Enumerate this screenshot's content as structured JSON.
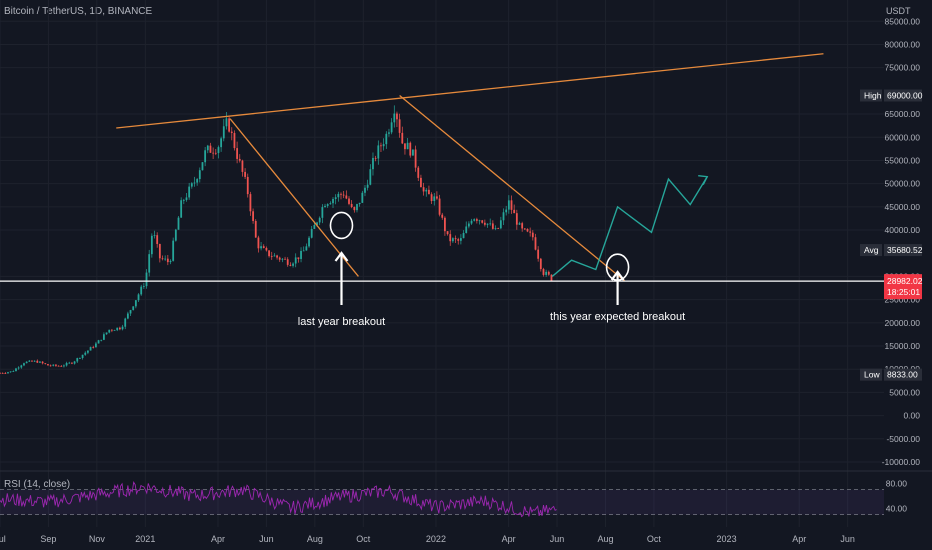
{
  "header": {
    "symbol_title": "Bitcoin / TetherUS, 1D, BINANCE",
    "unit": "USDT",
    "rsi_title": "RSI (14, close)"
  },
  "colors": {
    "background": "#131722",
    "trendline": "#e68a3c",
    "projection": "#26a69a",
    "rsi": "#9c27b0",
    "up_candle": "#26a69a",
    "down_candle": "#ef5350",
    "price_line": "#ffffff"
  },
  "price_axis": {
    "ticks": [
      {
        "value": 85000,
        "label": "85000.00"
      },
      {
        "value": 80000,
        "label": "80000.00"
      },
      {
        "value": 75000,
        "label": "75000.00"
      },
      {
        "value": 65000,
        "label": "65000.00"
      },
      {
        "value": 60000,
        "label": "60000.00"
      },
      {
        "value": 55000,
        "label": "55000.00"
      },
      {
        "value": 50000,
        "label": "50000.00"
      },
      {
        "value": 45000,
        "label": "45000.00"
      },
      {
        "value": 40000,
        "label": "40000.00"
      },
      {
        "value": 30000,
        "label": "30000.00"
      },
      {
        "value": 25000,
        "label": "25000.00"
      },
      {
        "value": 20000,
        "label": "20000.00"
      },
      {
        "value": 15000,
        "label": "15000.00"
      },
      {
        "value": 10000,
        "label": "10000.00"
      },
      {
        "value": 5000,
        "label": "5000.00"
      },
      {
        "value": 0,
        "label": "0.00"
      },
      {
        "value": -5000,
        "label": "-5000.00"
      },
      {
        "value": -10000,
        "label": "-10000.00"
      }
    ],
    "badges": {
      "high": {
        "label": "High",
        "value": 69000,
        "text": "69000.00"
      },
      "avg": {
        "label": "Avg",
        "value": 35680.52,
        "text": "35680.52"
      },
      "current": {
        "value": 28982.02,
        "text": "28982.02",
        "countdown": "18:25:01"
      },
      "low": {
        "label": "Low",
        "value": 8833,
        "text": "8833.00"
      }
    }
  },
  "rsi_axis": {
    "ticks": [
      {
        "value": 80,
        "label": "80.00"
      },
      {
        "value": 40,
        "label": "40.00"
      }
    ],
    "band": [
      30,
      70
    ]
  },
  "time_axis": [
    {
      "label": "Jul",
      "t": 0
    },
    {
      "label": "Sep",
      "t": 2
    },
    {
      "label": "Nov",
      "t": 4
    },
    {
      "label": "2021",
      "t": 6
    },
    {
      "label": "Apr",
      "t": 9
    },
    {
      "label": "Jun",
      "t": 11
    },
    {
      "label": "Aug",
      "t": 13
    },
    {
      "label": "Oct",
      "t": 15
    },
    {
      "label": "2022",
      "t": 18
    },
    {
      "label": "Apr",
      "t": 21
    },
    {
      "label": "Jun",
      "t": 23
    },
    {
      "label": "Aug",
      "t": 25
    },
    {
      "label": "Oct",
      "t": 27
    },
    {
      "label": "2023",
      "t": 30
    },
    {
      "label": "Apr",
      "t": 33
    },
    {
      "label": "Jun",
      "t": 35
    }
  ],
  "annotations": {
    "last_year": "last year breakout",
    "this_year": "this year expected breakout"
  },
  "chart_data": {
    "type": "line",
    "description_series": "BTC/USDT daily close (approx. monthly resolution, month index from Jul 2020)",
    "price_series": {
      "t": [
        0,
        0.5,
        1,
        1.5,
        2,
        2.5,
        3,
        3.5,
        4,
        4.5,
        5,
        5.5,
        6,
        6.3,
        6.6,
        7,
        7.5,
        8,
        8.5,
        9,
        9.4,
        9.8,
        10.2,
        10.6,
        11,
        11.5,
        12,
        12.5,
        13,
        13.4,
        13.8,
        14.2,
        14.6,
        15,
        15.5,
        16,
        16.3,
        16.6,
        17,
        17.5,
        18,
        18.5,
        19,
        19.5,
        20,
        20.5,
        21,
        21.5,
        22,
        22.4,
        22.8
      ],
      "close": [
        9200,
        9500,
        11500,
        11700,
        10800,
        10700,
        11500,
        13500,
        15600,
        18500,
        19000,
        24000,
        29000,
        40000,
        34000,
        33000,
        46000,
        50000,
        57000,
        58000,
        63500,
        56000,
        49000,
        37000,
        35000,
        34000,
        33000,
        35000,
        41000,
        46000,
        47000,
        48000,
        43500,
        48000,
        56000,
        61000,
        67000,
        59000,
        57000,
        48000,
        46500,
        38000,
        37500,
        43000,
        42000,
        39500,
        46000,
        40000,
        38500,
        31000,
        29500
      ]
    },
    "trendlines": [
      {
        "name": "",
        "x": [
          4.8,
          34
        ],
        "y": [
          62000,
          78000
        ]
      },
      {
        "name": "",
        "x": [
          9.5,
          14.8
        ],
        "y": [
          64000,
          30000
        ]
      },
      {
        "name": "",
        "x": [
          16.5,
          25.8
        ],
        "y": [
          69000,
          29000
        ]
      }
    ],
    "projection": {
      "x": [
        22.8,
        23.6,
        24.6,
        25.5,
        26.9,
        27.6,
        28.5,
        29.2
      ],
      "y": [
        30000,
        33500,
        31500,
        45000,
        39500,
        51000,
        45500,
        51500
      ]
    },
    "horizontal_line": 28982.02,
    "ylim": [
      -10000,
      87000
    ],
    "rsi": {
      "ylim": [
        15,
        95
      ],
      "t": [
        0,
        2,
        4,
        6,
        8,
        10,
        12,
        14,
        16,
        18,
        20,
        22,
        23
      ],
      "values": [
        55,
        50,
        62,
        75,
        60,
        70,
        40,
        58,
        68,
        42,
        52,
        32,
        38
      ]
    }
  }
}
